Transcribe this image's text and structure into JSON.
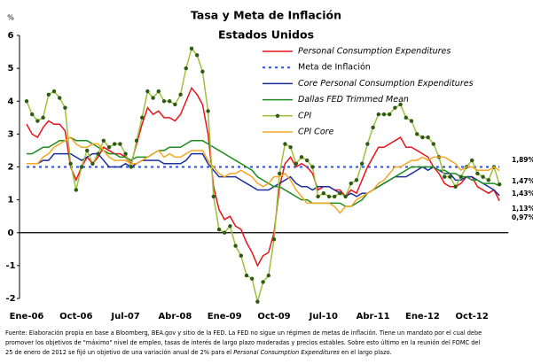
{
  "chart_data": {
    "type": "line",
    "title": "Tasa y Meta de Inflación",
    "subtitle": "Estados Unidos",
    "y_unit": "%",
    "categories": [
      "Ene-06",
      null,
      null,
      null,
      null,
      null,
      null,
      null,
      null,
      "Oct-06",
      null,
      null,
      null,
      null,
      null,
      null,
      null,
      null,
      "Jul-07",
      null,
      null,
      null,
      null,
      null,
      null,
      null,
      null,
      "Abr-08",
      null,
      null,
      null,
      null,
      null,
      null,
      null,
      null,
      "Ene-09",
      null,
      null,
      null,
      null,
      null,
      null,
      null,
      null,
      "Oct-09",
      null,
      null,
      null,
      null,
      null,
      null,
      null,
      null,
      "Jul-10",
      null,
      null,
      null,
      null,
      null,
      null,
      null,
      null,
      "Abr-11",
      null,
      null,
      null,
      null,
      null,
      null,
      null,
      null,
      "Ene-12",
      null,
      null,
      null,
      null,
      null,
      null,
      null,
      null,
      "Oct-12",
      null,
      null,
      null,
      null,
      null
    ],
    "ylim": [
      -2,
      6
    ],
    "yticks": [
      -2,
      -1,
      0,
      1,
      2,
      3,
      4,
      5,
      6
    ],
    "grid": false,
    "series": [
      {
        "name": "Personal Consumption Expenditures",
        "color": "#e8141c",
        "italic": true,
        "values": [
          3.3,
          3.0,
          2.9,
          3.2,
          3.4,
          3.3,
          3.3,
          3.1,
          2.0,
          1.6,
          2.0,
          2.3,
          2.1,
          2.3,
          2.6,
          2.5,
          2.4,
          2.4,
          2.3,
          2.1,
          2.7,
          3.3,
          3.8,
          3.6,
          3.7,
          3.5,
          3.5,
          3.4,
          3.6,
          4.0,
          4.4,
          4.2,
          3.9,
          3.0,
          1.4,
          0.7,
          0.4,
          0.5,
          0.2,
          0.1,
          -0.3,
          -0.6,
          -1.0,
          -0.7,
          -0.6,
          0.0,
          1.4,
          2.1,
          2.3,
          2.0,
          2.1,
          2.0,
          1.8,
          1.3,
          1.4,
          1.4,
          1.3,
          1.3,
          1.1,
          1.3,
          1.2,
          1.6,
          2.0,
          2.3,
          2.6,
          2.6,
          2.7,
          2.8,
          2.9,
          2.6,
          2.6,
          2.5,
          2.4,
          2.3,
          2.0,
          1.8,
          1.5,
          1.4,
          1.4,
          1.5,
          1.7,
          1.7,
          1.4,
          1.3,
          1.2,
          1.3,
          0.97
        ]
      },
      {
        "name": "Meta de Inflación",
        "color": "#2b4fd8",
        "dash": true,
        "italic": false,
        "values": [
          2,
          2,
          2,
          2,
          2,
          2,
          2,
          2,
          2,
          2,
          2,
          2,
          2,
          2,
          2,
          2,
          2,
          2,
          2,
          2,
          2,
          2,
          2,
          2,
          2,
          2,
          2,
          2,
          2,
          2,
          2,
          2,
          2,
          2,
          2,
          2,
          2,
          2,
          2,
          2,
          2,
          2,
          2,
          2,
          2,
          2,
          2,
          2,
          2,
          2,
          2,
          2,
          2,
          2,
          2,
          2,
          2,
          2,
          2,
          2,
          2,
          2,
          2,
          2,
          2,
          2,
          2,
          2,
          2,
          2,
          2,
          2,
          2,
          2,
          2,
          2,
          2,
          2,
          2,
          2,
          2,
          2,
          2,
          2,
          2,
          2,
          2
        ]
      },
      {
        "name": "Core Personal Consumption Expenditures",
        "color": "#1c2f9c",
        "italic": true,
        "values": [
          2.1,
          2.1,
          2.1,
          2.2,
          2.2,
          2.4,
          2.4,
          2.4,
          2.4,
          2.3,
          2.2,
          2.3,
          2.4,
          2.4,
          2.2,
          2.0,
          2.0,
          2.0,
          2.1,
          2.0,
          2.1,
          2.2,
          2.2,
          2.2,
          2.2,
          2.1,
          2.1,
          2.1,
          2.1,
          2.2,
          2.4,
          2.4,
          2.4,
          2.1,
          1.9,
          1.7,
          1.7,
          1.7,
          1.7,
          1.6,
          1.5,
          1.4,
          1.3,
          1.3,
          1.3,
          1.4,
          1.5,
          1.6,
          1.7,
          1.5,
          1.4,
          1.4,
          1.3,
          1.4,
          1.4,
          1.4,
          1.3,
          1.2,
          1.1,
          1.2,
          1.1,
          1.2,
          1.2,
          1.3,
          1.4,
          1.5,
          1.6,
          1.7,
          1.7,
          1.7,
          1.8,
          1.9,
          2.0,
          1.9,
          2.0,
          1.9,
          1.8,
          1.8,
          1.6,
          1.6,
          1.7,
          1.7,
          1.6,
          1.5,
          1.4,
          1.3,
          1.13
        ]
      },
      {
        "name": "Dallas FED Trimmed Mean",
        "color": "#1e8c1e",
        "italic": true,
        "values": [
          2.4,
          2.4,
          2.5,
          2.6,
          2.6,
          2.7,
          2.8,
          2.8,
          2.9,
          2.8,
          2.8,
          2.8,
          2.7,
          2.6,
          2.5,
          2.4,
          2.4,
          2.3,
          2.3,
          2.2,
          2.3,
          2.3,
          2.3,
          2.4,
          2.5,
          2.5,
          2.6,
          2.6,
          2.6,
          2.7,
          2.8,
          2.8,
          2.8,
          2.7,
          2.6,
          2.5,
          2.4,
          2.3,
          2.2,
          2.1,
          2.0,
          1.9,
          1.7,
          1.6,
          1.5,
          1.4,
          1.4,
          1.3,
          1.2,
          1.1,
          1.0,
          1.0,
          0.9,
          0.9,
          0.9,
          0.9,
          0.9,
          0.9,
          0.8,
          0.8,
          0.9,
          1.0,
          1.2,
          1.3,
          1.4,
          1.5,
          1.6,
          1.7,
          1.8,
          1.9,
          2.0,
          2.0,
          2.0,
          2.0,
          2.0,
          1.9,
          1.9,
          1.8,
          1.8,
          1.7,
          1.7,
          1.6,
          1.6,
          1.5,
          1.5,
          1.5,
          1.43
        ]
      },
      {
        "name": "CPI",
        "color": "#9cc23c",
        "marker_color": "#2d5a14",
        "markers": true,
        "italic": true,
        "values": [
          4.0,
          3.6,
          3.4,
          3.5,
          4.2,
          4.3,
          4.1,
          3.8,
          2.1,
          1.3,
          2.0,
          2.5,
          2.1,
          2.4,
          2.8,
          2.6,
          2.7,
          2.7,
          2.4,
          2.0,
          2.8,
          3.5,
          4.3,
          4.1,
          4.3,
          4.0,
          4.0,
          3.9,
          4.2,
          5.0,
          5.6,
          5.4,
          4.9,
          3.7,
          1.1,
          0.1,
          0.0,
          0.2,
          -0.4,
          -0.7,
          -1.3,
          -1.4,
          -2.1,
          -1.5,
          -1.3,
          -0.2,
          1.8,
          2.7,
          2.6,
          2.1,
          2.3,
          2.2,
          2.0,
          1.1,
          1.2,
          1.1,
          1.1,
          1.2,
          1.1,
          1.5,
          1.6,
          2.1,
          2.7,
          3.2,
          3.6,
          3.6,
          3.6,
          3.8,
          3.9,
          3.5,
          3.4,
          3.0,
          2.9,
          2.9,
          2.7,
          2.3,
          1.7,
          1.7,
          1.4,
          1.7,
          2.0,
          2.2,
          1.8,
          1.7,
          1.6,
          2.0,
          1.47
        ]
      },
      {
        "name": "CPI Core",
        "color": "#f5a623",
        "italic": true,
        "values": [
          2.1,
          2.1,
          2.1,
          2.3,
          2.4,
          2.6,
          2.7,
          2.8,
          2.9,
          2.7,
          2.6,
          2.6,
          2.7,
          2.7,
          2.5,
          2.3,
          2.2,
          2.2,
          2.2,
          2.1,
          2.1,
          2.2,
          2.3,
          2.4,
          2.5,
          2.3,
          2.4,
          2.3,
          2.3,
          2.4,
          2.5,
          2.5,
          2.5,
          2.2,
          2.0,
          1.8,
          1.7,
          1.8,
          1.8,
          1.9,
          1.8,
          1.7,
          1.5,
          1.4,
          1.5,
          1.7,
          1.7,
          1.8,
          1.6,
          1.3,
          1.1,
          0.9,
          0.9,
          0.9,
          0.9,
          0.9,
          0.8,
          0.6,
          0.8,
          0.8,
          1.0,
          1.1,
          1.2,
          1.3,
          1.5,
          1.6,
          1.8,
          2.0,
          2.0,
          2.1,
          2.2,
          2.2,
          2.3,
          2.2,
          2.3,
          2.3,
          2.3,
          2.2,
          2.1,
          1.9,
          2.0,
          2.0,
          1.9,
          1.9,
          1.9,
          2.0,
          1.89
        ]
      }
    ],
    "annotations": [
      "1,89%",
      "1,47%",
      "1,43%",
      "1,13%",
      "0,97%"
    ],
    "footnote": [
      "Fuente: Elaboración propia en base a Bloomberg, BEA.gov y sitio de la FED. La FED no sigue un régimen de metas de inflación. Tiene un mandato por el cual debe",
      "promover los objetivos de \"máximo\" nivel de empleo, tasas de interés de largo plazo moderadas  y precios estables. Sobre esto último en la reunión del FOMC del",
      "25 de enero de 2012 se fijó un objetivo de una variación anual de 2% para el ",
      "Personal Consumption Expenditures",
      " en el largo plazo."
    ]
  }
}
